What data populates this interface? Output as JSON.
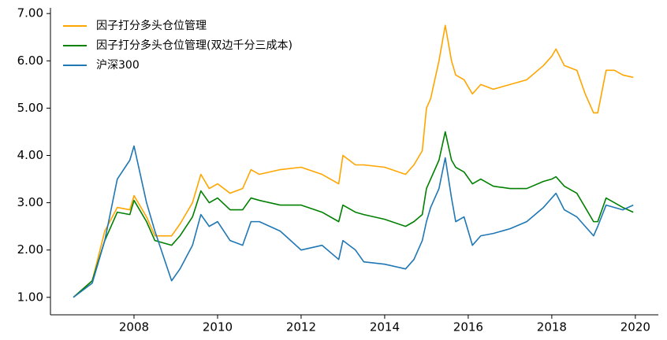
{
  "chart_data": {
    "type": "line",
    "x": [
      2006.55,
      2007.0,
      2007.3,
      2007.6,
      2007.9,
      2008.0,
      2008.3,
      2008.5,
      2008.9,
      2009.1,
      2009.4,
      2009.6,
      2009.8,
      2010.0,
      2010.3,
      2010.6,
      2010.8,
      2011.0,
      2011.5,
      2012.0,
      2012.5,
      2012.9,
      2013.0,
      2013.3,
      2013.5,
      2014.0,
      2014.5,
      2014.7,
      2014.9,
      2015.0,
      2015.1,
      2015.3,
      2015.45,
      2015.6,
      2015.7,
      2015.9,
      2016.1,
      2016.3,
      2016.6,
      2017.0,
      2017.4,
      2017.8,
      2018.0,
      2018.1,
      2018.3,
      2018.6,
      2018.8,
      2019.0,
      2019.1,
      2019.3,
      2019.5,
      2019.7,
      2019.95
    ],
    "series": [
      {
        "name": "因子打分多头仓位管理",
        "color": "#ffa500",
        "values": [
          1.0,
          1.35,
          2.4,
          2.9,
          2.85,
          3.15,
          2.7,
          2.3,
          2.3,
          2.55,
          3.0,
          3.6,
          3.3,
          3.4,
          3.2,
          3.3,
          3.7,
          3.6,
          3.7,
          3.75,
          3.6,
          3.4,
          4.0,
          3.8,
          3.8,
          3.75,
          3.6,
          3.8,
          4.1,
          5.0,
          5.2,
          6.0,
          6.75,
          6.0,
          5.7,
          5.6,
          5.3,
          5.5,
          5.4,
          5.5,
          5.6,
          5.9,
          6.1,
          6.25,
          5.9,
          5.8,
          5.3,
          4.9,
          4.9,
          5.8,
          5.8,
          5.7,
          5.65
        ]
      },
      {
        "name": "因子打分多头仓位管理(双边千分三成本)",
        "color": "#008000",
        "values": [
          1.0,
          1.35,
          2.2,
          2.8,
          2.75,
          3.05,
          2.6,
          2.2,
          2.1,
          2.3,
          2.7,
          3.25,
          3.0,
          3.1,
          2.85,
          2.85,
          3.1,
          3.05,
          2.95,
          2.95,
          2.8,
          2.6,
          2.95,
          2.8,
          2.75,
          2.65,
          2.5,
          2.6,
          2.75,
          3.3,
          3.5,
          3.9,
          4.5,
          3.9,
          3.75,
          3.65,
          3.4,
          3.5,
          3.35,
          3.3,
          3.3,
          3.45,
          3.5,
          3.55,
          3.35,
          3.2,
          2.9,
          2.6,
          2.6,
          3.1,
          3.0,
          2.9,
          2.8
        ]
      },
      {
        "name": "沪深300",
        "color": "#1f77b4",
        "values": [
          1.0,
          1.3,
          2.2,
          3.5,
          3.9,
          4.2,
          3.0,
          2.4,
          1.35,
          1.6,
          2.1,
          2.75,
          2.5,
          2.6,
          2.2,
          2.1,
          2.6,
          2.6,
          2.4,
          2.0,
          2.1,
          1.8,
          2.2,
          2.0,
          1.75,
          1.7,
          1.6,
          1.8,
          2.2,
          2.6,
          2.9,
          3.3,
          3.95,
          3.1,
          2.6,
          2.7,
          2.1,
          2.3,
          2.35,
          2.45,
          2.6,
          2.9,
          3.1,
          3.2,
          2.85,
          2.7,
          2.5,
          2.3,
          2.5,
          2.95,
          2.9,
          2.85,
          2.95
        ]
      }
    ],
    "xlim": [
      2006.0,
      2020.55
    ],
    "ylim": [
      0.63,
      7.12
    ],
    "xticks": [
      2008,
      2010,
      2012,
      2014,
      2016,
      2018,
      2020
    ],
    "yticks": [
      {
        "value": 1,
        "label": "1.00"
      },
      {
        "value": 2,
        "label": "2.00"
      },
      {
        "value": 3,
        "label": "3.00"
      },
      {
        "value": 4,
        "label": "4.00"
      },
      {
        "value": 5,
        "label": "5.00"
      },
      {
        "value": 6,
        "label": "6.00"
      },
      {
        "value": 7,
        "label": "7.00"
      }
    ],
    "legend": "upper left",
    "grid": false
  }
}
